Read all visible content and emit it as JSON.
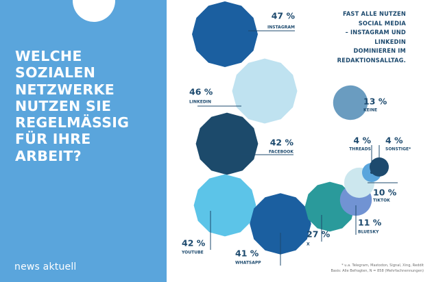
{
  "headline_lines": [
    "WELCHE",
    "SOZIALEN",
    "NETZWERKE",
    "NUTZEN SIE",
    "REGELMÄSSIG",
    "FÜR IHRE",
    "ARBEIT?"
  ],
  "brand": "news aktuell",
  "subtitle_lines": [
    "FAST ALLE NUTZEN",
    "SOCIAL MEDIA",
    "– INSTAGRAM UND",
    "LINKEDIN",
    "DOMINIEREN IM",
    "REDAKTIONSALLTAG."
  ],
  "footnote_lines": [
    "* u.a. Telegram, Mastodon, Signal, Xing, Reddit",
    "Basis: Alle Befragten, N = 858 (Mehrfachnennungen)"
  ],
  "colors": {
    "panel": "#5aa5dc",
    "label": "#1d4a6e",
    "instagram": "#1b5fa0",
    "linkedin": "#bfe2f0",
    "facebook": "#1c4a6b",
    "youtube": "#5cc4e8",
    "whatsapp": "#1b5fa0",
    "x": "#2a9a9b",
    "bluesky": "#7193d3",
    "tiktok": "#cce7ee",
    "threads": "#5aa5dc",
    "sonstige": "#1d4a6e",
    "keine": "#6a9cc0"
  },
  "chart_data": {
    "type": "bubble",
    "unit": "%",
    "categories": [
      "INSTAGRAM",
      "LINKEDIN",
      "FACEBOOK",
      "YOUTUBE",
      "WHATSAPP",
      "X",
      "BLUESKY",
      "TIKTOK",
      "THREADS",
      "SONSTIGE*",
      "KEINE"
    ],
    "values": [
      47,
      46,
      42,
      42,
      41,
      27,
      11,
      10,
      4,
      4,
      13
    ],
    "value_labels": [
      "47 %",
      "46 %",
      "42 %",
      "42 %",
      "41 %",
      "27 %",
      "11 %",
      "10 %",
      "4 %",
      "4 %",
      "13 %"
    ]
  }
}
